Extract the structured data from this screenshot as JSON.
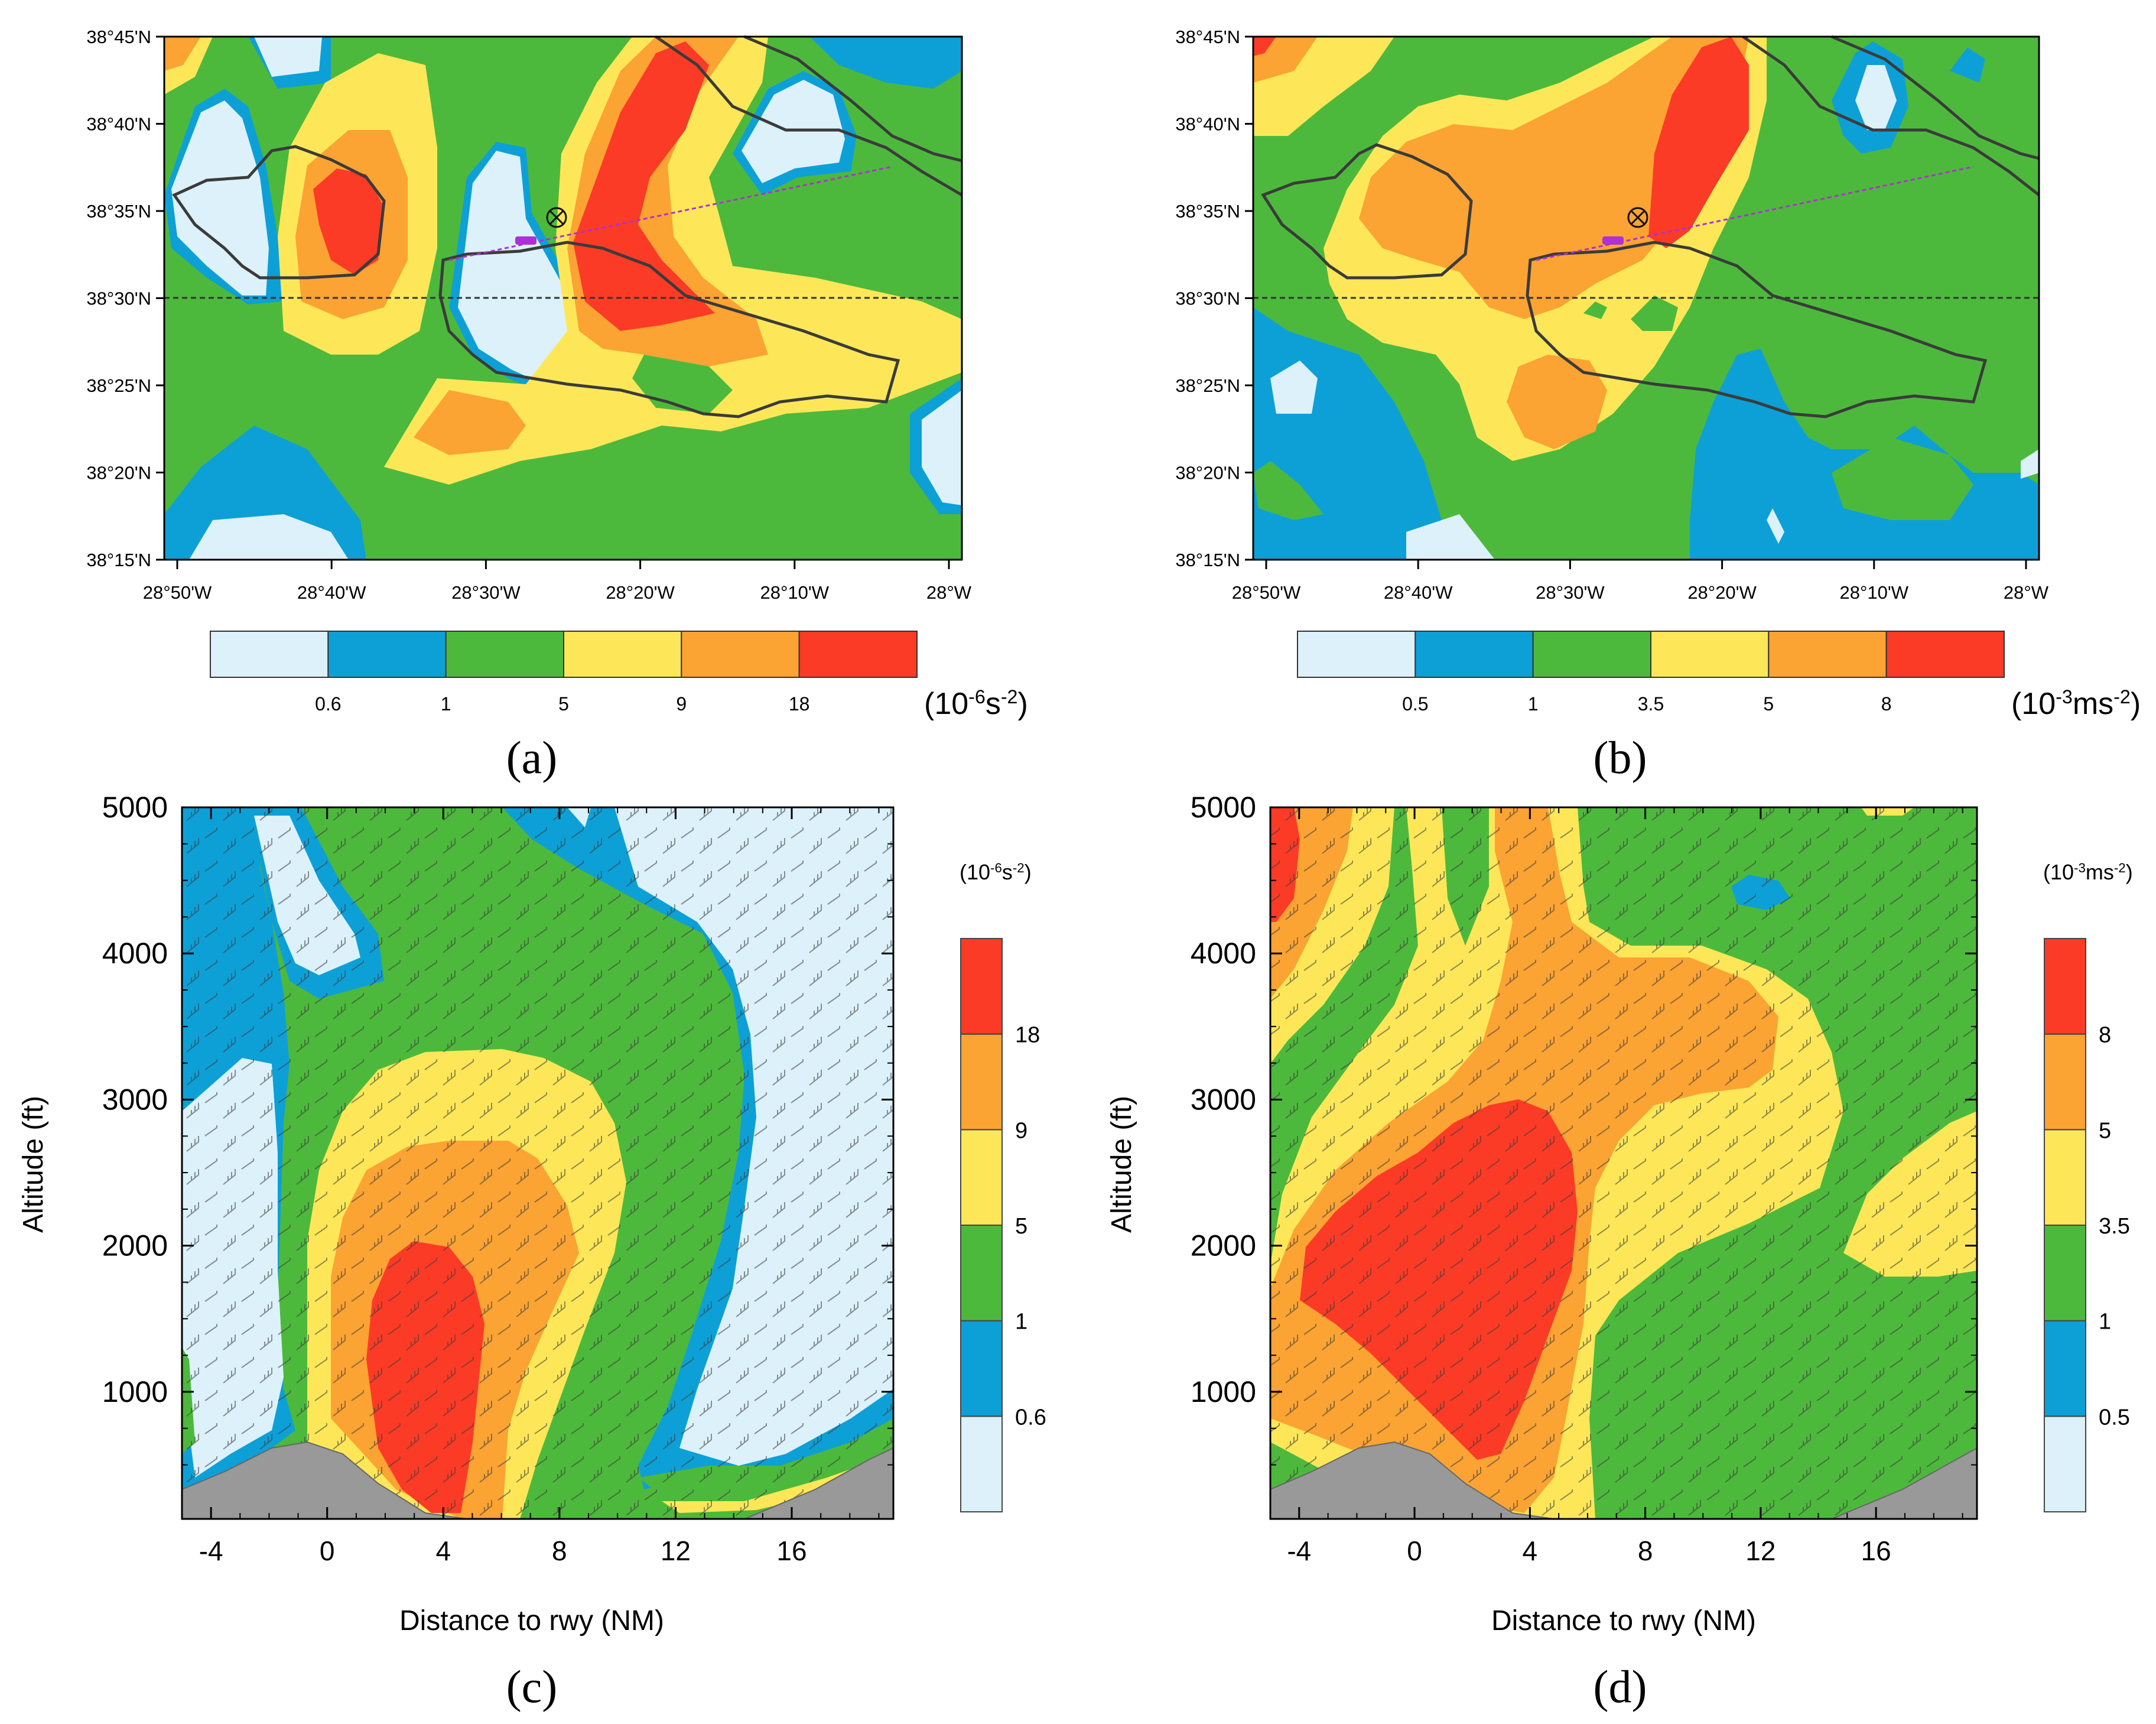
{
  "chart_data": [
    {
      "type": "heatmap",
      "panel_label": "(a)",
      "x_ticks": [
        "28°50'W",
        "28°40'W",
        "28°30'W",
        "28°20'W",
        "28°10'W",
        "28°W"
      ],
      "y_ticks": [
        "38°15'N",
        "38°20'N",
        "38°25'N",
        "38°30'N",
        "38°35'N",
        "38°40'N",
        "38°45'N"
      ],
      "legend_levels": [
        "0.6",
        "1",
        "5",
        "9",
        "18"
      ],
      "unit_base": "(10",
      "unit_exp": "-6",
      "unit_tail": "s",
      "unit_exp2": "-2",
      "unit_close": ")",
      "colors": [
        "#dcf1fa",
        "#0da0d6",
        "#4db93c",
        "#fde758",
        "#fba333",
        "#fb3b26"
      ]
    },
    {
      "type": "heatmap",
      "panel_label": "(b)",
      "x_ticks": [
        "28°50'W",
        "28°40'W",
        "28°30'W",
        "28°20'W",
        "28°10'W",
        "28°W"
      ],
      "y_ticks": [
        "38°15'N",
        "38°20'N",
        "38°25'N",
        "38°30'N",
        "38°35'N",
        "38°40'N",
        "38°45'N"
      ],
      "legend_levels": [
        "0.5",
        "1",
        "3.5",
        "5",
        "8"
      ],
      "unit_base": "(10",
      "unit_exp": "-3",
      "unit_tail": "ms",
      "unit_exp2": "-2",
      "unit_close": ")",
      "colors": [
        "#dcf1fa",
        "#0da0d6",
        "#4db93c",
        "#fde758",
        "#fba333",
        "#fb3b26"
      ]
    },
    {
      "type": "heatmap",
      "panel_label": "(c)",
      "xlabel": "Distance to rwy (NM)",
      "ylabel": "Altitude (ft)",
      "x_ticks": [
        "-4",
        "0",
        "4",
        "8",
        "12",
        "16"
      ],
      "y_ticks": [
        "1000",
        "2000",
        "3000",
        "4000",
        "5000"
      ],
      "xlim": [
        -5,
        19.5
      ],
      "ylim": [
        130,
        5000
      ],
      "legend_levels": [
        "0.6",
        "1",
        "5",
        "9",
        "18"
      ],
      "unit": "(10-6s-2)",
      "unit_base": "(10",
      "unit_exp": "-6",
      "unit_tail": "s",
      "unit_exp2": "-2",
      "unit_close": ")",
      "colors": [
        "#dcf1fa",
        "#0da0d6",
        "#4db93c",
        "#fde758",
        "#fba333",
        "#fb3b26"
      ]
    },
    {
      "type": "heatmap",
      "panel_label": "(d)",
      "xlabel": "Distance to rwy (NM)",
      "ylabel": "Altitude (ft)",
      "x_ticks": [
        "-4",
        "0",
        "4",
        "8",
        "12",
        "16"
      ],
      "y_ticks": [
        "1000",
        "2000",
        "3000",
        "4000",
        "5000"
      ],
      "xlim": [
        -5,
        19.5
      ],
      "ylim": [
        130,
        5000
      ],
      "legend_levels": [
        "0.5",
        "1",
        "3.5",
        "5",
        "8"
      ],
      "unit_base": "(10",
      "unit_exp": "-3",
      "unit_tail": "ms",
      "unit_exp2": "-2",
      "unit_close": ")",
      "colors": [
        "#dcf1fa",
        "#0da0d6",
        "#4db93c",
        "#fde758",
        "#fba333",
        "#fb3b26"
      ]
    }
  ]
}
